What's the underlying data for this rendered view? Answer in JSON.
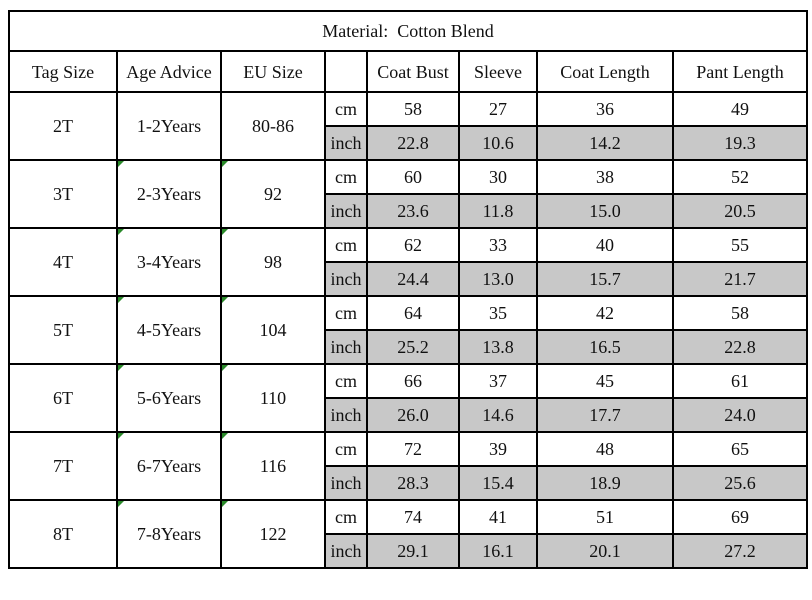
{
  "title": {
    "label": "Material:",
    "value": "Cotton Blend"
  },
  "headers": [
    "Tag Size",
    "Age Advice",
    "EU Size",
    "",
    "Coat Bust",
    "Sleeve",
    "Coat Length",
    "Pant Length"
  ],
  "rows": [
    {
      "tag": "2T",
      "age": "1-2Years",
      "eu": "80-86",
      "cm": {
        "unit": "cm",
        "values": [
          "58",
          "27",
          "36",
          "49"
        ]
      },
      "inch": {
        "unit": "inch",
        "values": [
          "22.8",
          "10.6",
          "14.2",
          "19.3"
        ]
      }
    },
    {
      "tag": "3T",
      "age": "2-3Years",
      "eu": "92",
      "cm": {
        "unit": "cm",
        "values": [
          "60",
          "30",
          "38",
          "52"
        ]
      },
      "inch": {
        "unit": "inch",
        "values": [
          "23.6",
          "11.8",
          "15.0",
          "20.5"
        ]
      }
    },
    {
      "tag": "4T",
      "age": "3-4Years",
      "eu": "98",
      "cm": {
        "unit": "cm",
        "values": [
          "62",
          "33",
          "40",
          "55"
        ]
      },
      "inch": {
        "unit": "inch",
        "values": [
          "24.4",
          "13.0",
          "15.7",
          "21.7"
        ]
      }
    },
    {
      "tag": "5T",
      "age": "4-5Years",
      "eu": "104",
      "cm": {
        "unit": "cm",
        "values": [
          "64",
          "35",
          "42",
          "58"
        ]
      },
      "inch": {
        "unit": "inch",
        "values": [
          "25.2",
          "13.8",
          "16.5",
          "22.8"
        ]
      }
    },
    {
      "tag": "6T",
      "age": "5-6Years",
      "eu": "110",
      "cm": {
        "unit": "cm",
        "values": [
          "66",
          "37",
          "45",
          "61"
        ]
      },
      "inch": {
        "unit": "inch",
        "values": [
          "26.0",
          "14.6",
          "17.7",
          "24.0"
        ]
      }
    },
    {
      "tag": "7T",
      "age": "6-7Years",
      "eu": "116",
      "cm": {
        "unit": "cm",
        "values": [
          "72",
          "39",
          "48",
          "65"
        ]
      },
      "inch": {
        "unit": "inch",
        "values": [
          "28.3",
          "15.4",
          "18.9",
          "25.6"
        ]
      }
    },
    {
      "tag": "8T",
      "age": "7-8Years",
      "eu": "122",
      "cm": {
        "unit": "cm",
        "values": [
          "74",
          "41",
          "51",
          "69"
        ]
      },
      "inch": {
        "unit": "inch",
        "values": [
          "29.1",
          "16.1",
          "20.1",
          "27.2"
        ]
      }
    }
  ],
  "colors": {
    "border": "#000000",
    "inch_row_fill": "#c8c8c8",
    "text": "#111111"
  }
}
